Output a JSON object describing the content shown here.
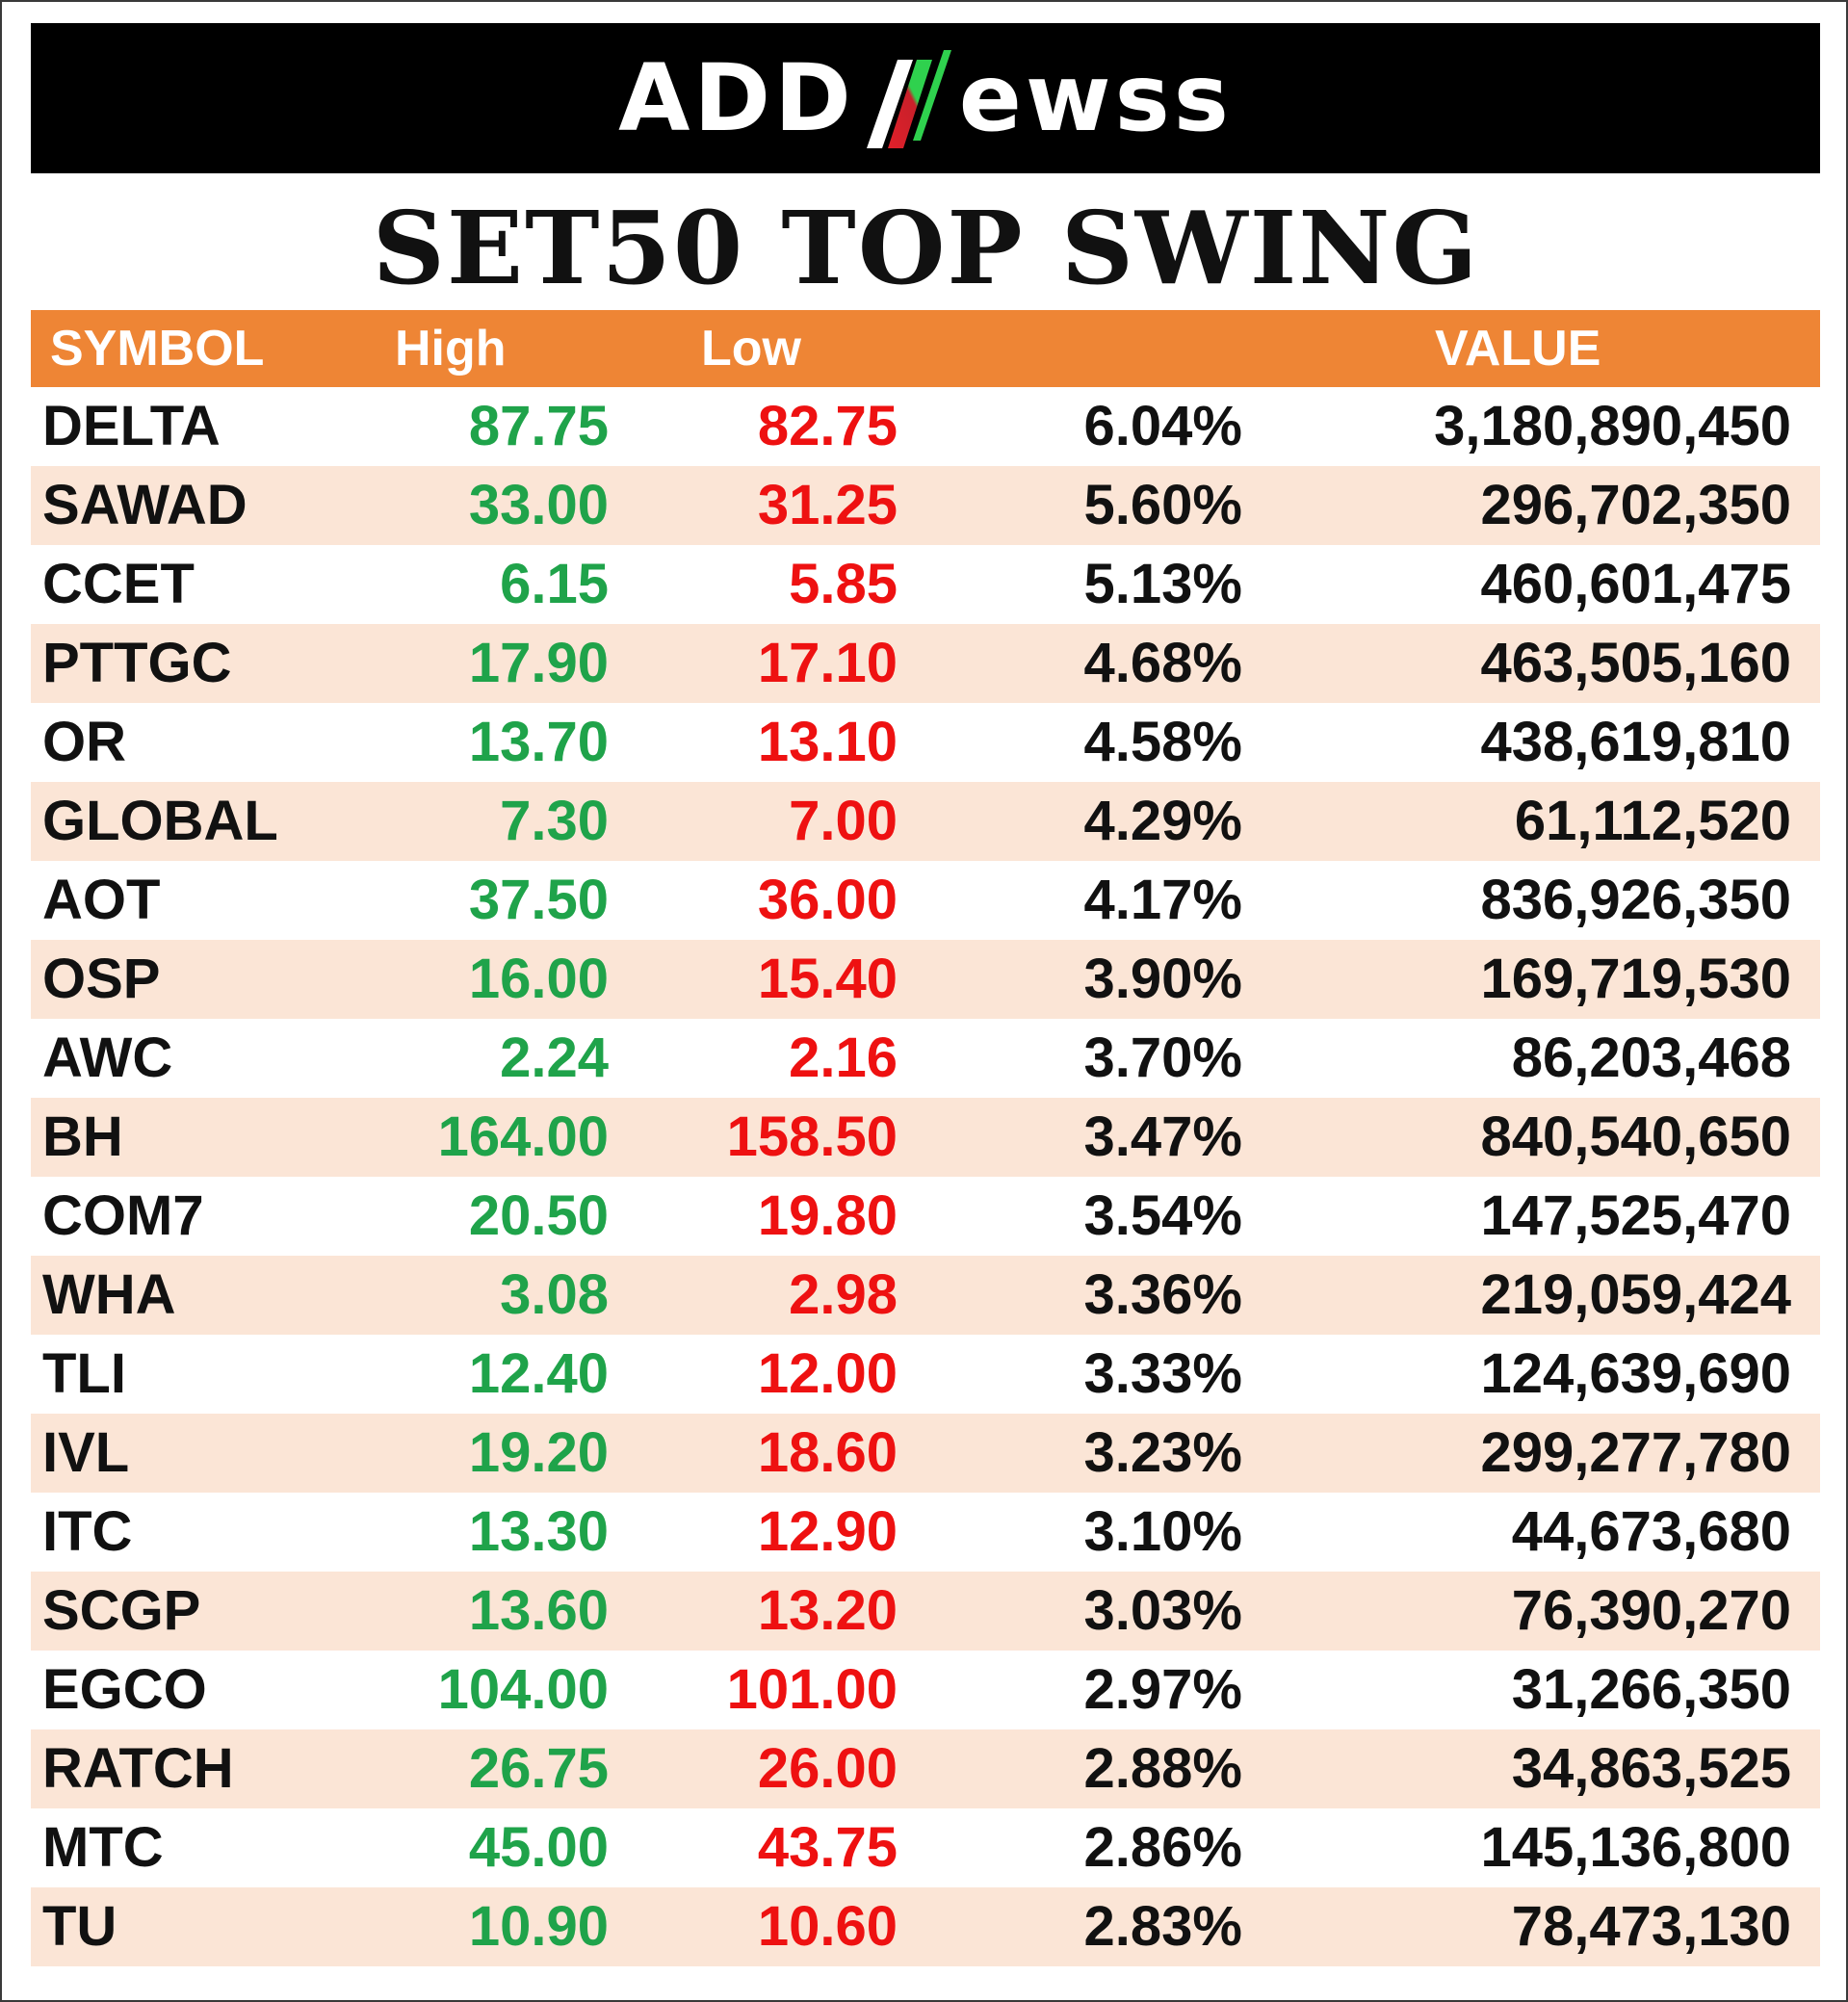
{
  "brand": {
    "logo_left": "ADD",
    "logo_right": "ewss",
    "logo_mark": "stylized N (red to green)",
    "colors": {
      "mark_red": "#e0202a",
      "mark_green": "#2fd14e"
    }
  },
  "title": "SET50 TOP SWING",
  "table": {
    "headers": {
      "symbol": "SYMBOL",
      "high": "High",
      "low": "Low",
      "pct": "",
      "value": "VALUE"
    },
    "colors": {
      "header_bg": "#ee8535",
      "alt_row_bg": "#fbe5d6",
      "high": "#1fa34a",
      "low": "#ee1111"
    },
    "rows": [
      {
        "symbol": "DELTA",
        "high": "87.75",
        "low": "82.75",
        "pct": "6.04%",
        "value": "3,180,890,450"
      },
      {
        "symbol": "SAWAD",
        "high": "33.00",
        "low": "31.25",
        "pct": "5.60%",
        "value": "296,702,350"
      },
      {
        "symbol": "CCET",
        "high": "6.15",
        "low": "5.85",
        "pct": "5.13%",
        "value": "460,601,475"
      },
      {
        "symbol": "PTTGC",
        "high": "17.90",
        "low": "17.10",
        "pct": "4.68%",
        "value": "463,505,160"
      },
      {
        "symbol": "OR",
        "high": "13.70",
        "low": "13.10",
        "pct": "4.58%",
        "value": "438,619,810"
      },
      {
        "symbol": "GLOBAL",
        "high": "7.30",
        "low": "7.00",
        "pct": "4.29%",
        "value": "61,112,520"
      },
      {
        "symbol": "AOT",
        "high": "37.50",
        "low": "36.00",
        "pct": "4.17%",
        "value": "836,926,350"
      },
      {
        "symbol": "OSP",
        "high": "16.00",
        "low": "15.40",
        "pct": "3.90%",
        "value": "169,719,530"
      },
      {
        "symbol": "AWC",
        "high": "2.24",
        "low": "2.16",
        "pct": "3.70%",
        "value": "86,203,468"
      },
      {
        "symbol": "BH",
        "high": "164.00",
        "low": "158.50",
        "pct": "3.47%",
        "value": "840,540,650"
      },
      {
        "symbol": "COM7",
        "high": "20.50",
        "low": "19.80",
        "pct": "3.54%",
        "value": "147,525,470"
      },
      {
        "symbol": "WHA",
        "high": "3.08",
        "low": "2.98",
        "pct": "3.36%",
        "value": "219,059,424"
      },
      {
        "symbol": "TLI",
        "high": "12.40",
        "low": "12.00",
        "pct": "3.33%",
        "value": "124,639,690"
      },
      {
        "symbol": "IVL",
        "high": "19.20",
        "low": "18.60",
        "pct": "3.23%",
        "value": "299,277,780"
      },
      {
        "symbol": "ITC",
        "high": "13.30",
        "low": "12.90",
        "pct": "3.10%",
        "value": "44,673,680"
      },
      {
        "symbol": "SCGP",
        "high": "13.60",
        "low": "13.20",
        "pct": "3.03%",
        "value": "76,390,270"
      },
      {
        "symbol": "EGCO",
        "high": "104.00",
        "low": "101.00",
        "pct": "2.97%",
        "value": "31,266,350"
      },
      {
        "symbol": "RATCH",
        "high": "26.75",
        "low": "26.00",
        "pct": "2.88%",
        "value": "34,863,525"
      },
      {
        "symbol": "MTC",
        "high": "45.00",
        "low": "43.75",
        "pct": "2.86%",
        "value": "145,136,800"
      },
      {
        "symbol": "TU",
        "high": "10.90",
        "low": "10.60",
        "pct": "2.83%",
        "value": "78,473,130"
      }
    ]
  }
}
